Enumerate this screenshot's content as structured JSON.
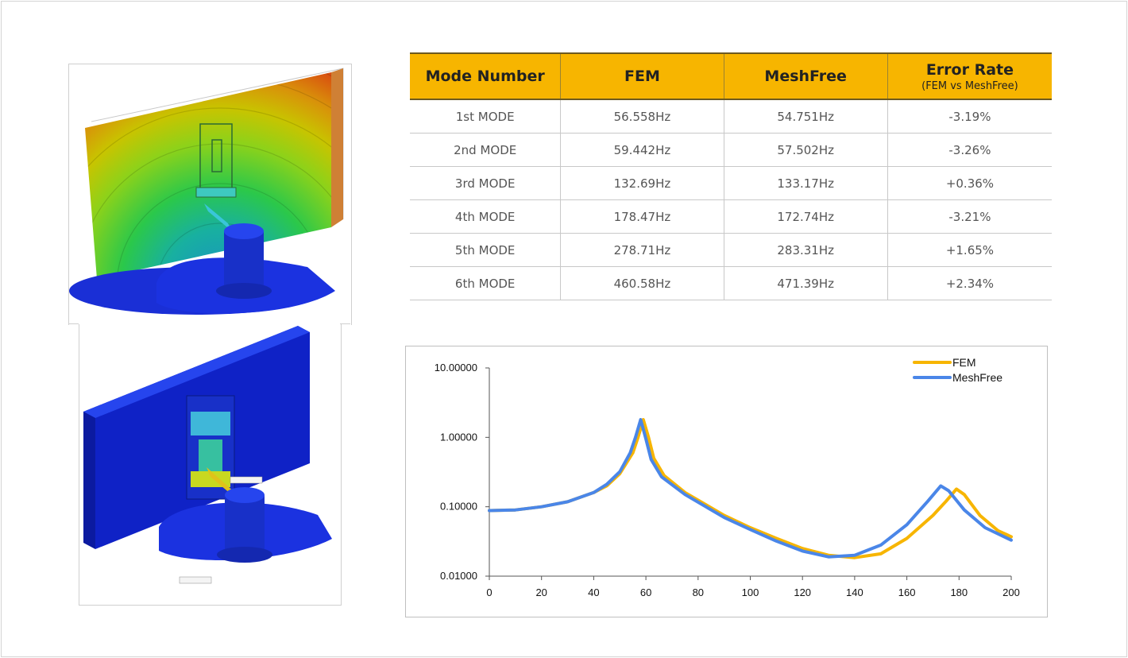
{
  "table": {
    "headers": [
      {
        "label": "Mode Number",
        "sub": ""
      },
      {
        "label": "FEM",
        "sub": ""
      },
      {
        "label": "MeshFree",
        "sub": ""
      },
      {
        "label": "Error Rate",
        "sub": "(FEM vs MeshFree)"
      }
    ],
    "rows": [
      [
        "1st MODE",
        "56.558Hz",
        "54.751Hz",
        "-3.19%"
      ],
      [
        "2nd MODE",
        "59.442Hz",
        "57.502Hz",
        "-3.26%"
      ],
      [
        "3rd MODE",
        "132.69Hz",
        "133.17Hz",
        "+0.36%"
      ],
      [
        "4th MODE",
        "178.47Hz",
        "172.74Hz",
        "-3.21%"
      ],
      [
        "5th MODE",
        "278.71Hz",
        "283.31Hz",
        "+1.65%"
      ],
      [
        "6th MODE",
        "460.58Hz",
        "471.39Hz",
        "+2.34%"
      ]
    ]
  },
  "colors": {
    "header_bg": "#f7b500",
    "fem": "#f7b500",
    "meshfree": "#4a86e8"
  },
  "chart_data": {
    "type": "line",
    "title": "",
    "xlabel": "",
    "ylabel": "",
    "xlim": [
      0,
      200
    ],
    "ylim": [
      0.01,
      10
    ],
    "yscale": "log",
    "x_ticks": [
      "0",
      "20",
      "40",
      "60",
      "80",
      "100",
      "120",
      "140",
      "160",
      "180",
      "200"
    ],
    "y_ticks": [
      "10.00000",
      "1.00000",
      "0.10000",
      "0.01000"
    ],
    "legend_position": "top-right",
    "grid": false,
    "series": [
      {
        "name": "FEM",
        "color": "#f7b500",
        "points": [
          [
            0,
            0.088
          ],
          [
            10,
            0.09
          ],
          [
            20,
            0.1
          ],
          [
            30,
            0.118
          ],
          [
            40,
            0.16
          ],
          [
            45,
            0.2
          ],
          [
            50,
            0.3
          ],
          [
            55,
            0.6
          ],
          [
            57,
            1.0
          ],
          [
            59,
            1.8
          ],
          [
            61,
            1.0
          ],
          [
            63,
            0.5
          ],
          [
            67,
            0.28
          ],
          [
            75,
            0.16
          ],
          [
            90,
            0.075
          ],
          [
            100,
            0.05
          ],
          [
            110,
            0.035
          ],
          [
            120,
            0.025
          ],
          [
            130,
            0.02
          ],
          [
            140,
            0.0185
          ],
          [
            150,
            0.021
          ],
          [
            160,
            0.035
          ],
          [
            170,
            0.075
          ],
          [
            175,
            0.12
          ],
          [
            179,
            0.18
          ],
          [
            182,
            0.15
          ],
          [
            188,
            0.075
          ],
          [
            195,
            0.045
          ],
          [
            200,
            0.037
          ]
        ]
      },
      {
        "name": "MeshFree",
        "color": "#4a86e8",
        "points": [
          [
            0,
            0.088
          ],
          [
            10,
            0.09
          ],
          [
            20,
            0.1
          ],
          [
            30,
            0.118
          ],
          [
            40,
            0.16
          ],
          [
            45,
            0.21
          ],
          [
            50,
            0.32
          ],
          [
            54,
            0.6
          ],
          [
            56,
            1.0
          ],
          [
            58,
            1.8
          ],
          [
            60,
            0.95
          ],
          [
            62,
            0.48
          ],
          [
            66,
            0.27
          ],
          [
            75,
            0.15
          ],
          [
            90,
            0.07
          ],
          [
            100,
            0.047
          ],
          [
            110,
            0.032
          ],
          [
            120,
            0.023
          ],
          [
            130,
            0.019
          ],
          [
            140,
            0.02
          ],
          [
            150,
            0.028
          ],
          [
            160,
            0.055
          ],
          [
            168,
            0.12
          ],
          [
            173,
            0.2
          ],
          [
            176,
            0.17
          ],
          [
            182,
            0.09
          ],
          [
            190,
            0.05
          ],
          [
            200,
            0.033
          ]
        ]
      }
    ]
  }
}
